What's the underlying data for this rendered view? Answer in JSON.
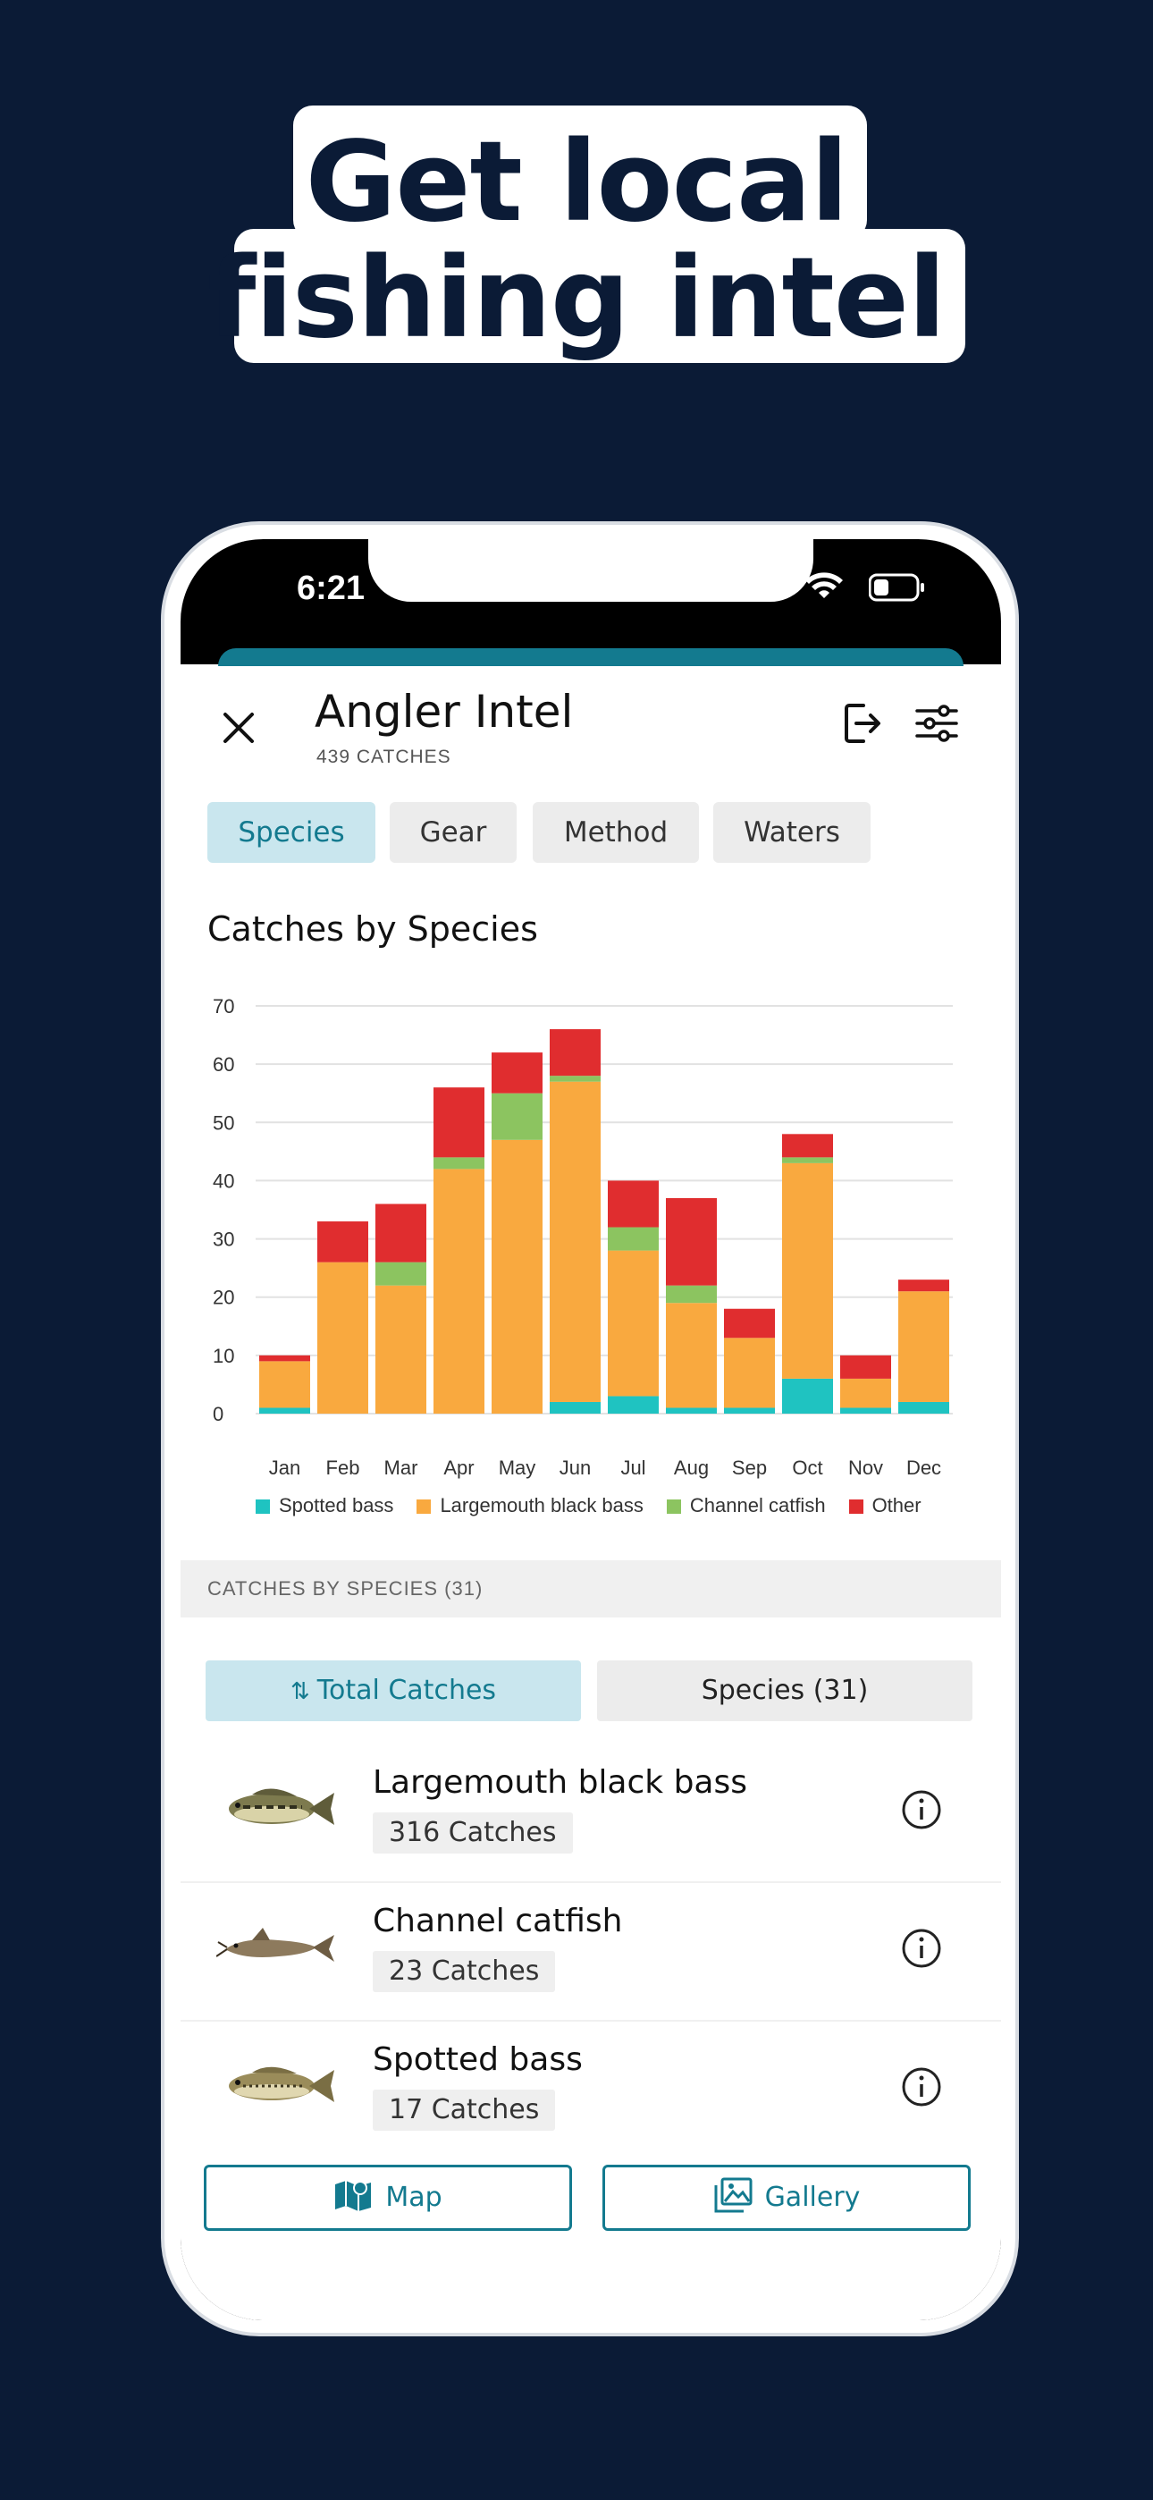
{
  "headline": {
    "line1": "Get local",
    "line2": "fishing intel"
  },
  "status": {
    "time": "6:21"
  },
  "header": {
    "title": "Angler Intel",
    "subtitle": "439 CATCHES"
  },
  "tabs": [
    {
      "label": "Species",
      "active": true
    },
    {
      "label": "Gear",
      "active": false
    },
    {
      "label": "Method",
      "active": false
    },
    {
      "label": "Waters",
      "active": false
    }
  ],
  "section_title": "Catches by Species",
  "chart_data": {
    "type": "bar",
    "stacked": true,
    "title": "Catches by Species",
    "categories": [
      "Jan",
      "Feb",
      "Mar",
      "Apr",
      "May",
      "Jun",
      "Jul",
      "Aug",
      "Sep",
      "Oct",
      "Nov",
      "Dec"
    ],
    "ylim": [
      0,
      70
    ],
    "yticks": [
      0,
      10,
      20,
      30,
      40,
      50,
      60,
      70
    ],
    "grid": true,
    "legend_position": "bottom",
    "series": [
      {
        "name": "Spotted bass",
        "color": "#1fc3c1",
        "values": [
          1,
          0,
          0,
          0,
          0,
          2,
          3,
          1,
          1,
          6,
          1,
          2
        ]
      },
      {
        "name": "Largemouth black bass",
        "color": "#f9a93f",
        "values": [
          8,
          26,
          22,
          42,
          47,
          55,
          25,
          18,
          12,
          37,
          5,
          19
        ]
      },
      {
        "name": "Channel catfish",
        "color": "#8cc460",
        "values": [
          0,
          0,
          4,
          2,
          8,
          1,
          4,
          3,
          0,
          1,
          0,
          0
        ]
      },
      {
        "name": "Other",
        "color": "#e02d2f",
        "values": [
          1,
          7,
          10,
          12,
          7,
          8,
          8,
          15,
          5,
          4,
          4,
          2
        ]
      }
    ]
  },
  "band_label": "CATCHES BY SPECIES (31)",
  "sort": {
    "total_label": "Total Catches",
    "species_label": "Species (31)"
  },
  "species": [
    {
      "name": "Largemouth black bass",
      "count": "316 Catches"
    },
    {
      "name": "Channel catfish",
      "count": "23 Catches"
    },
    {
      "name": "Spotted bass",
      "count": "17 Catches"
    }
  ],
  "bottom": {
    "map_label": "Map",
    "gallery_label": "Gallery"
  },
  "colors": {
    "background": "#0b1b36",
    "accent": "#137a8f",
    "chip_active": "#c9e6ee"
  }
}
